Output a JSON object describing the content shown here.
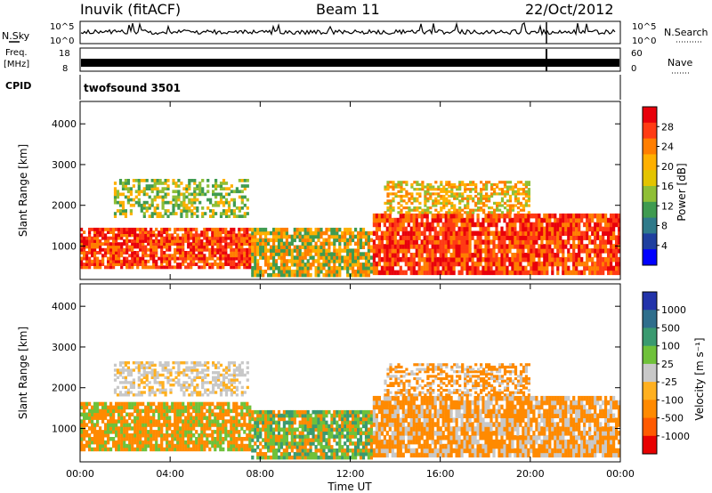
{
  "header": {
    "station": "Inuvik (fitACF)",
    "beam": "Beam 11",
    "date": "22/Oct/2012"
  },
  "top_panels": {
    "nsky_label": "N.Sky",
    "nsearch_label": "N.Search",
    "nsky_ticks": [
      "10^5",
      "10^0"
    ],
    "nsearch_ticks": [
      "10^5",
      "10^0"
    ],
    "freq_label_1": "Freq.",
    "freq_label_2": "[MHz]",
    "freq_ticks": [
      "18",
      "8"
    ],
    "nave_label": "Nave",
    "nave_ticks": [
      "60",
      "0"
    ],
    "cpid_label": "CPID",
    "cpid_value": "twofsound 3501"
  },
  "colorbars": {
    "power": {
      "label": "Power [dB]",
      "ticks": [
        "28",
        "24",
        "20",
        "16",
        "12",
        "8",
        "4"
      ],
      "colors": [
        "#e8000b",
        "#ff3b14",
        "#ff7e00",
        "#ffb000",
        "#e3c400",
        "#8fbf36",
        "#3f9b50",
        "#2f7a8a",
        "#1f3f9f",
        "#0000ff"
      ]
    },
    "velocity": {
      "label": "Velocity [m s⁻¹]",
      "ticks": [
        "1000",
        "500",
        "100",
        "25",
        "-25",
        "-100",
        "-500",
        "-1000"
      ],
      "colors": [
        "#2233aa",
        "#2f6e8c",
        "#3a9a70",
        "#6fc13a",
        "#c8c8c8",
        "#ffb020",
        "#ff8a00",
        "#ff5a00",
        "#e80000"
      ]
    }
  },
  "chart_data": [
    {
      "type": "heatmap",
      "title": "Power",
      "xlabel": "Time UT",
      "ylabel": "Slant Range [km]",
      "x_ticks": [
        "00:00",
        "04:00",
        "08:00",
        "12:00",
        "16:00",
        "20:00",
        "00:00"
      ],
      "y_ticks": [
        "1000",
        "2000",
        "3000",
        "4000"
      ],
      "xlim": [
        0,
        24
      ],
      "ylim": [
        180,
        4550
      ],
      "bands": [
        {
          "t0": 0.0,
          "t1": 7.6,
          "r0": 450,
          "r1": 1450,
          "levels": [
            26,
            28,
            30
          ]
        },
        {
          "t0": 7.6,
          "t1": 13.0,
          "r0": 250,
          "r1": 1450,
          "levels": [
            12,
            20,
            26
          ]
        },
        {
          "t0": 13.0,
          "t1": 24.0,
          "r0": 300,
          "r1": 1800,
          "levels": [
            26,
            28,
            30
          ]
        },
        {
          "t0": 1.5,
          "t1": 7.5,
          "r0": 1700,
          "r1": 2650,
          "levels": [
            12,
            16,
            20
          ]
        },
        {
          "t0": 13.5,
          "t1": 20.0,
          "r0": 1800,
          "r1": 2600,
          "levels": [
            16,
            20,
            24
          ]
        }
      ]
    },
    {
      "type": "heatmap",
      "title": "Velocity",
      "xlabel": "Time UT",
      "ylabel": "Slant Range [km]",
      "x_ticks": [
        "00:00",
        "04:00",
        "08:00",
        "12:00",
        "16:00",
        "20:00",
        "00:00"
      ],
      "y_ticks": [
        "1000",
        "2000",
        "3000",
        "4000"
      ],
      "xlim": [
        0,
        24
      ],
      "ylim": [
        180,
        4550
      ],
      "bands": [
        {
          "t0": 0.0,
          "t1": 7.6,
          "r0": 450,
          "r1": 1650,
          "levels": [
            -300,
            -100,
            60
          ]
        },
        {
          "t0": 7.6,
          "t1": 13.0,
          "r0": 250,
          "r1": 1450,
          "levels": [
            150,
            60,
            -100
          ]
        },
        {
          "t0": 13.0,
          "t1": 24.0,
          "r0": 300,
          "r1": 1800,
          "levels": [
            -300,
            -100,
            0
          ]
        },
        {
          "t0": 1.5,
          "t1": 7.5,
          "r0": 1800,
          "r1": 2650,
          "levels": [
            0,
            0,
            -60
          ]
        },
        {
          "t0": 13.5,
          "t1": 20.0,
          "r0": 1800,
          "r1": 2600,
          "levels": [
            0,
            -100,
            -300
          ]
        }
      ]
    }
  ]
}
